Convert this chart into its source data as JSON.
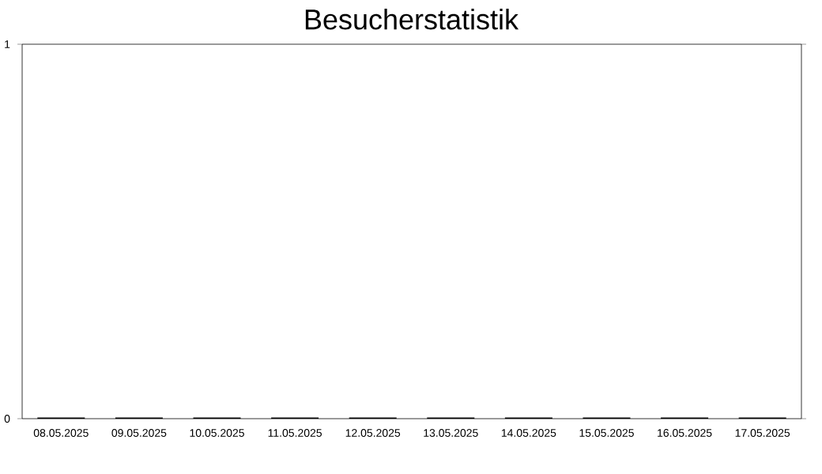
{
  "chart_data": {
    "type": "bar",
    "title": "Besucherstatistik",
    "categories": [
      "08.05.2025",
      "09.05.2025",
      "10.05.2025",
      "11.05.2025",
      "12.05.2025",
      "13.05.2025",
      "14.05.2025",
      "15.05.2025",
      "16.05.2025",
      "17.05.2025"
    ],
    "values": [
      0,
      0,
      0,
      0,
      0,
      0,
      0,
      0,
      0,
      0
    ],
    "color": "#000000",
    "ylim": [
      0,
      1
    ],
    "yticks": [
      0,
      1
    ]
  }
}
